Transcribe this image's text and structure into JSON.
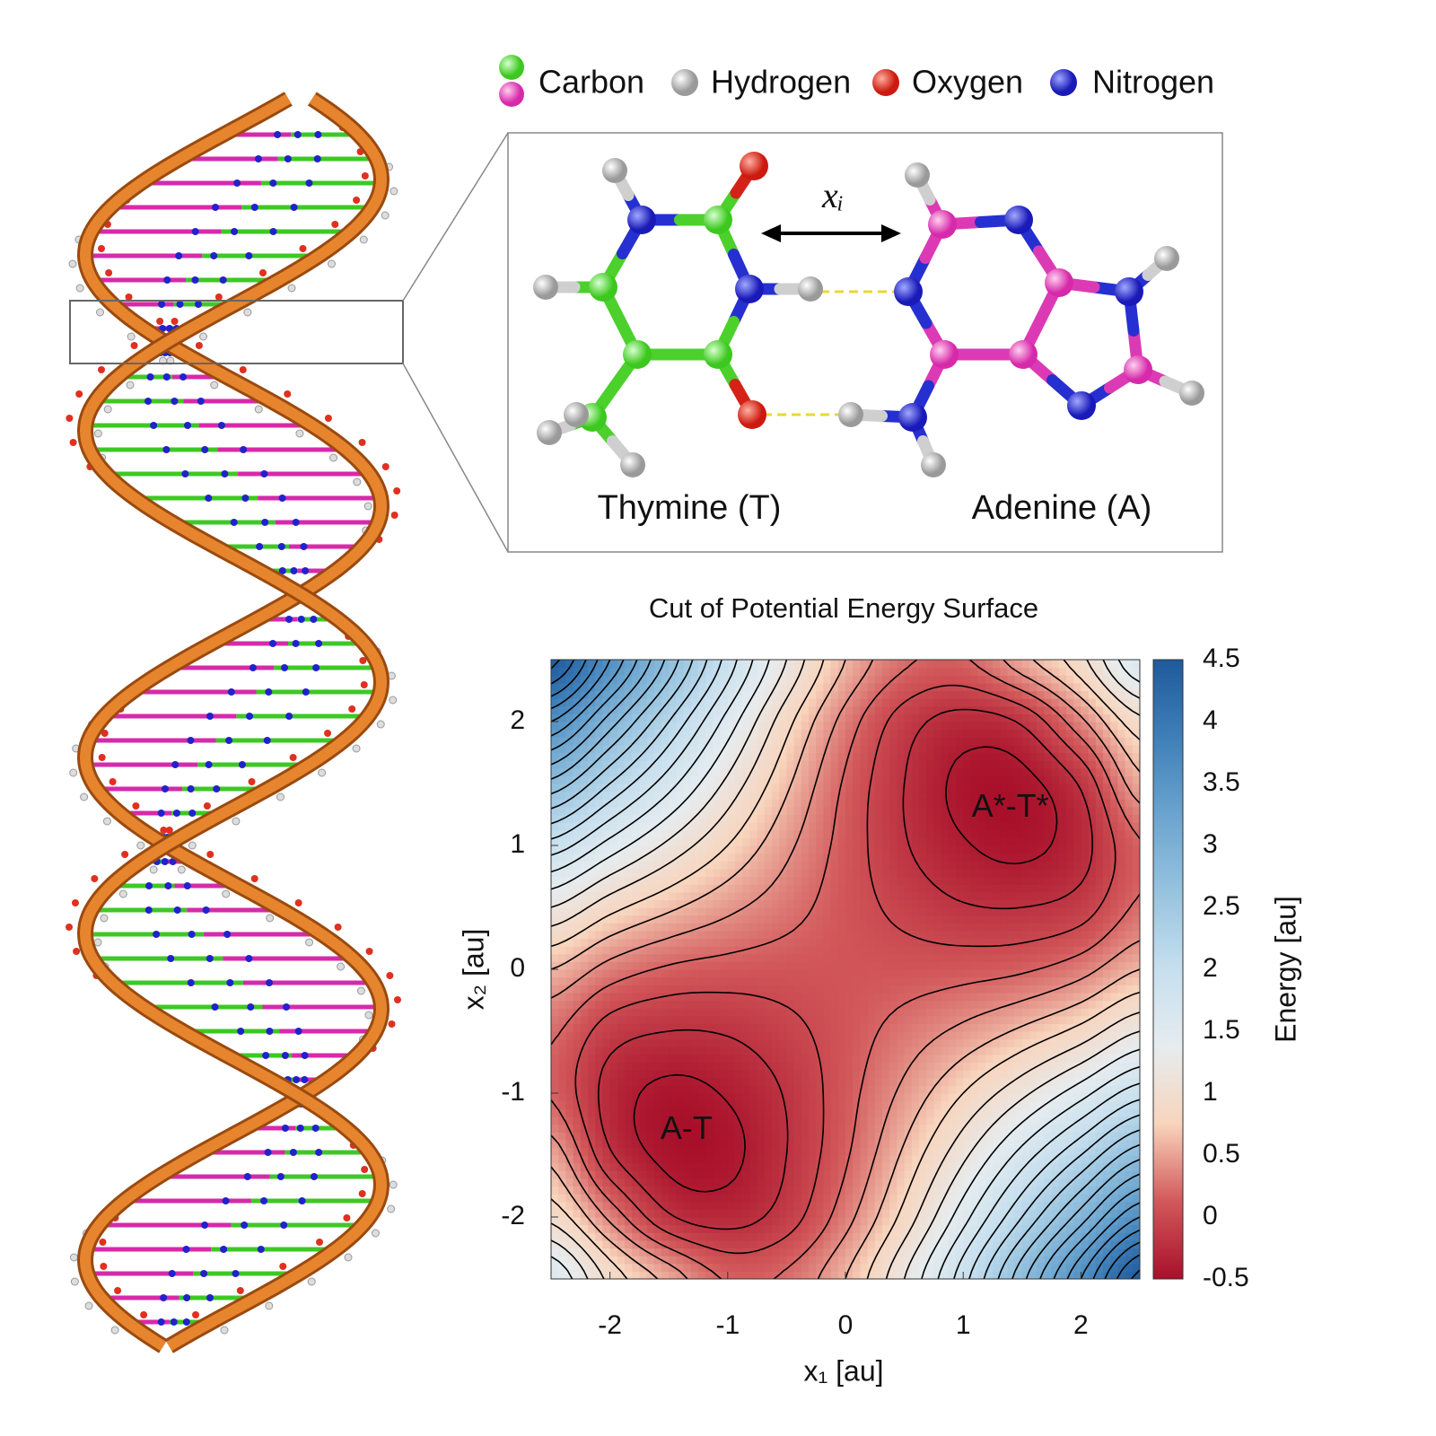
{
  "legend": {
    "items": [
      "Carbon",
      "Hydrogen",
      "Oxygen",
      "Nitrogen"
    ]
  },
  "molecule": {
    "left_label": "Thymine (T)",
    "right_label": "Adenine (A)",
    "distance_label": "xᵢ"
  },
  "chart_data": {
    "type": "contour",
    "title": "Cut of Potential Energy Surface",
    "x_label": "x₁ [au]",
    "y_label": "x₂ [au]",
    "colorbar_label": "Energy [au]",
    "xlim": [
      -2.5,
      2.5
    ],
    "ylim": [
      -2.5,
      2.5
    ],
    "xticks": [
      -2,
      -1,
      0,
      1,
      2
    ],
    "yticks": [
      -2,
      -1,
      0,
      1,
      2
    ],
    "x": [
      -2.5,
      -2,
      -1.5,
      -1,
      -0.5,
      0,
      0.5,
      1,
      1.5,
      2,
      2.5
    ],
    "y": [
      -2.5,
      -2,
      -1.5,
      -1,
      -0.5,
      0,
      0.5,
      1,
      1.5,
      2,
      2.5
    ],
    "z": [
      [
        1.6,
        0.94,
        0.53,
        0.18,
        0.24,
        0.6,
        1.2,
        1.92,
        2.74,
        3.6,
        4.48
      ],
      [
        0.94,
        0.35,
        -0.17,
        -0.28,
        -0.1,
        0.32,
        0.87,
        1.52,
        2.2,
        2.9,
        3.6
      ],
      [
        0.53,
        -0.17,
        -0.46,
        -0.45,
        -0.2,
        0.17,
        0.64,
        1.15,
        1.68,
        2.2,
        2.74
      ],
      [
        0.18,
        -0.28,
        -0.45,
        -0.38,
        -0.18,
        0.12,
        0.45,
        0.8,
        1.15,
        1.52,
        1.92
      ],
      [
        0.24,
        -0.1,
        -0.2,
        -0.18,
        -0.06,
        0.1,
        0.28,
        0.45,
        0.64,
        0.87,
        1.2
      ],
      [
        0.6,
        0.32,
        0.17,
        0.12,
        0.1,
        0.1,
        0.1,
        0.12,
        0.17,
        0.32,
        0.6
      ],
      [
        1.2,
        0.87,
        0.64,
        0.45,
        0.28,
        0.1,
        -0.06,
        -0.18,
        -0.2,
        -0.1,
        0.24
      ],
      [
        1.92,
        1.52,
        1.15,
        0.8,
        0.45,
        0.12,
        -0.18,
        -0.38,
        -0.45,
        -0.28,
        0.18
      ],
      [
        2.74,
        2.2,
        1.68,
        1.15,
        0.64,
        0.17,
        -0.2,
        -0.45,
        -0.46,
        -0.17,
        0.53
      ],
      [
        3.6,
        2.9,
        2.2,
        1.52,
        0.87,
        0.32,
        -0.1,
        -0.28,
        -0.17,
        0.35,
        0.94
      ],
      [
        4.48,
        3.6,
        2.74,
        1.92,
        1.2,
        0.6,
        0.24,
        0.18,
        0.53,
        0.94,
        1.6
      ]
    ],
    "zlim": [
      -0.5,
      4.5
    ],
    "zticks": [
      -0.5,
      0,
      0.5,
      1,
      1.5,
      2,
      2.5,
      3,
      3.5,
      4,
      4.5
    ],
    "levels": [
      -0.4,
      -0.2,
      0,
      0.2,
      0.4,
      0.6,
      0.8,
      1,
      1.2,
      1.4,
      1.6,
      1.8,
      2,
      2.2,
      2.4,
      2.6,
      2.8,
      3,
      3.2,
      3.4,
      3.6,
      3.8,
      4,
      4.2,
      4.4
    ],
    "colorscale": [
      "#a8102a",
      "#d2585a",
      "#f8d4bc",
      "#e6ecef",
      "#c6dfee",
      "#97c3df",
      "#6aa4cf",
      "#3f7fb8",
      "#1f5a9c"
    ],
    "contour_color": "#000000",
    "annotations": [
      {
        "text": "A-T",
        "x": -1.35,
        "y": -1.3
      },
      {
        "text": "A*-T*",
        "x": 1.4,
        "y": 1.3
      }
    ]
  }
}
